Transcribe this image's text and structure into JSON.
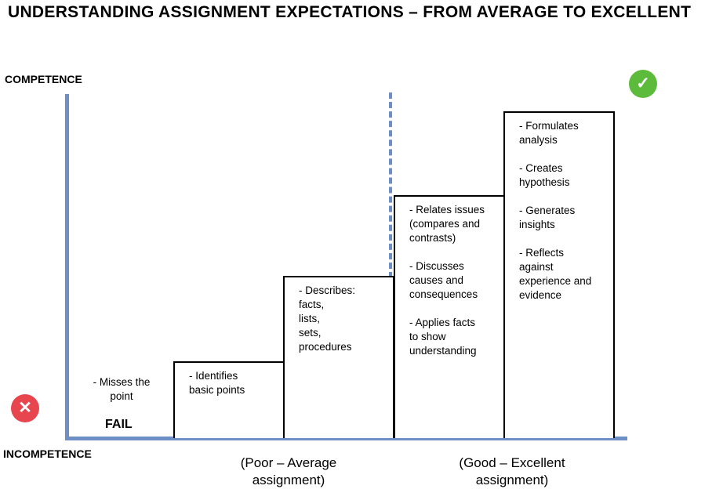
{
  "title": "UNDERSTANDING ASSIGNMENT EXPECTATIONS – FROM AVERAGE TO EXCELLENT",
  "y_axis": {
    "top_label": "COMPETENCE",
    "bottom_label": "INCOMPETENCE"
  },
  "fail": {
    "description": "- Misses the\npoint",
    "label": "FAIL"
  },
  "steps": [
    {
      "bullets": [
        "- Identifies\nbasic points"
      ]
    },
    {
      "bullets": [
        "- Describes:\nfacts,\nlists,\nsets,\nprocedures"
      ]
    },
    {
      "bullets": [
        "- Relates issues\n(compares and\ncontrasts)",
        "- Discusses\ncauses and\nconsequences",
        "- Applies facts\nto show\nunderstanding"
      ]
    },
    {
      "bullets": [
        "- Formulates\nanalysis",
        "- Creates\nhypothesis",
        "- Generates\ninsights",
        "- Reflects\nagainst\nexperience and\nevidence"
      ]
    }
  ],
  "ranges": {
    "poor": "(Poor – Average\nassignment)",
    "good": "(Good – Excellent\nassignment)"
  },
  "icons": {
    "fail_icon": {
      "name": "x-icon",
      "glyph": "✕",
      "color": "#e8464f"
    },
    "success_icon": {
      "name": "check-icon",
      "glyph": "✓",
      "color": "#5dbb3b"
    }
  }
}
